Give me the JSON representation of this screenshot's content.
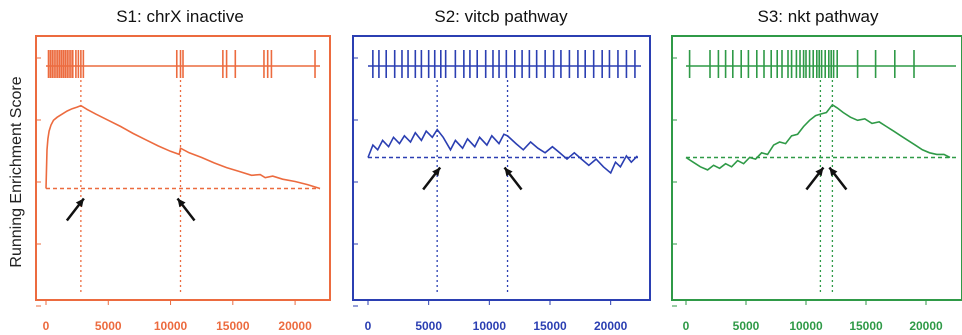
{
  "figure": {
    "ylabel": "Running Enrichment Score"
  },
  "chart_data": [
    {
      "type": "line",
      "title": "S1: chrX inactive",
      "color": "#ec6b3f",
      "xlim": [
        0,
        22000
      ],
      "x_ticks": [
        0,
        5000,
        10000,
        15000,
        20000
      ],
      "ylim": [
        0,
        1
      ],
      "grid": false,
      "baseline": 0.3,
      "marker_x": [
        2800,
        10800
      ],
      "hits": [
        200,
        350,
        500,
        650,
        800,
        950,
        1100,
        1250,
        1400,
        1550,
        1700,
        1850,
        2000,
        2150,
        2400,
        2600,
        2800,
        3000,
        10500,
        10800,
        11000,
        14200,
        14500,
        15200,
        17500,
        17800,
        18100,
        21600
      ],
      "series": [
        {
          "x": [
            0,
            80,
            150,
            250,
            400,
            600,
            900,
            1300,
            1700,
            2100,
            2500,
            2800,
            3300,
            4000,
            5000,
            6000,
            7000,
            8000,
            9000,
            10000,
            10700,
            10800,
            11500,
            12500,
            13500,
            14500,
            15500,
            16500,
            17200,
            17600,
            18200,
            19000,
            20000,
            21000,
            22000
          ],
          "y": [
            0.3,
            0.55,
            0.62,
            0.67,
            0.71,
            0.74,
            0.76,
            0.78,
            0.8,
            0.815,
            0.825,
            0.835,
            0.81,
            0.78,
            0.74,
            0.7,
            0.655,
            0.615,
            0.575,
            0.54,
            0.52,
            0.56,
            0.53,
            0.5,
            0.465,
            0.435,
            0.41,
            0.385,
            0.39,
            0.37,
            0.38,
            0.36,
            0.345,
            0.325,
            0.3
          ]
        }
      ],
      "arrows": [
        2800,
        10800
      ]
    },
    {
      "type": "line",
      "title": "S2: vitcb pathway",
      "color": "#2b3fb2",
      "xlim": [
        0,
        22500
      ],
      "x_ticks": [
        0,
        5000,
        10000,
        15000,
        20000
      ],
      "ylim": [
        0,
        1
      ],
      "grid": false,
      "baseline": 0.5,
      "marker_x": [
        5700,
        11500
      ],
      "hits": [
        400,
        900,
        1500,
        2200,
        2800,
        3300,
        3900,
        4400,
        5000,
        5500,
        6000,
        6400,
        7200,
        7900,
        8400,
        9000,
        9700,
        10300,
        10800,
        11400,
        12100,
        12700,
        13300,
        13900,
        14600,
        15300,
        15900,
        16600,
        17300,
        17900,
        18600,
        19300,
        19900,
        20600,
        21300,
        22000
      ],
      "series": [
        {
          "x": [
            0,
            400,
            800,
            1200,
            1700,
            2100,
            2600,
            3000,
            3500,
            3900,
            4400,
            4800,
            5300,
            5700,
            6200,
            6800,
            7200,
            7800,
            8200,
            8800,
            9200,
            9800,
            10200,
            10800,
            11200,
            11500,
            12200,
            12800,
            13400,
            14000,
            14600,
            15200,
            15800,
            16400,
            17000,
            17600,
            18200,
            18800,
            19400,
            20000,
            20400,
            20800,
            21300,
            21700,
            22200
          ],
          "y": [
            0.5,
            0.58,
            0.55,
            0.61,
            0.57,
            0.63,
            0.59,
            0.64,
            0.6,
            0.66,
            0.61,
            0.67,
            0.63,
            0.68,
            0.63,
            0.55,
            0.61,
            0.56,
            0.62,
            0.57,
            0.63,
            0.58,
            0.64,
            0.59,
            0.65,
            0.64,
            0.59,
            0.55,
            0.6,
            0.56,
            0.53,
            0.57,
            0.53,
            0.49,
            0.53,
            0.49,
            0.45,
            0.49,
            0.44,
            0.4,
            0.47,
            0.44,
            0.51,
            0.47,
            0.51
          ]
        }
      ],
      "arrows": [
        5700,
        11500
      ]
    },
    {
      "type": "line",
      "title": "S3: nkt pathway",
      "color": "#2f9a47",
      "xlim": [
        0,
        22500
      ],
      "x_ticks": [
        0,
        5000,
        10000,
        15000,
        20000
      ],
      "ylim": [
        0,
        1
      ],
      "grid": false,
      "baseline": 0.5,
      "marker_x": [
        11200,
        12200
      ],
      "hits": [
        300,
        2000,
        2700,
        3300,
        3900,
        4600,
        5200,
        5900,
        6500,
        7100,
        7600,
        8000,
        8500,
        8800,
        9200,
        9500,
        9800,
        10000,
        10300,
        10600,
        10900,
        11100,
        11300,
        11600,
        11900,
        12100,
        12300,
        12600,
        14300,
        15800,
        17400,
        19000
      ],
      "series": [
        {
          "x": [
            0,
            600,
            1200,
            1800,
            2300,
            2800,
            3300,
            3800,
            4300,
            4800,
            5300,
            5800,
            6300,
            6800,
            7300,
            7800,
            8300,
            8800,
            9300,
            9800,
            10300,
            10800,
            11200,
            11700,
            12200,
            12600,
            13100,
            13700,
            14300,
            14900,
            15500,
            16100,
            16700,
            17300,
            17900,
            18500,
            19100,
            19700,
            20300,
            20900,
            21500,
            22000
          ],
          "y": [
            0.5,
            0.47,
            0.44,
            0.42,
            0.45,
            0.43,
            0.46,
            0.44,
            0.48,
            0.46,
            0.5,
            0.49,
            0.53,
            0.52,
            0.58,
            0.6,
            0.59,
            0.64,
            0.65,
            0.7,
            0.74,
            0.77,
            0.78,
            0.79,
            0.84,
            0.82,
            0.79,
            0.76,
            0.74,
            0.75,
            0.72,
            0.73,
            0.7,
            0.67,
            0.64,
            0.61,
            0.58,
            0.55,
            0.53,
            0.52,
            0.52,
            0.5
          ]
        }
      ],
      "arrows": [
        11200,
        12200
      ]
    }
  ]
}
